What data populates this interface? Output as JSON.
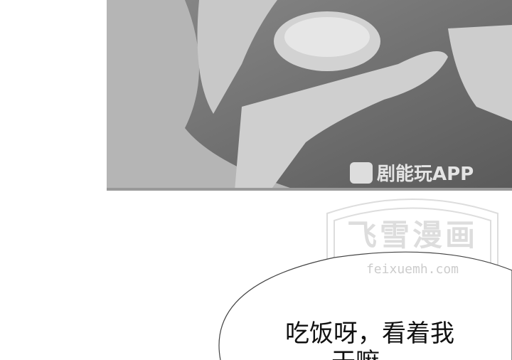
{
  "watermark": {
    "app": "剧能玩APP",
    "site_name": "飞雪漫画",
    "site_url": "feixuemh.com"
  },
  "speech_bubble": {
    "lines": [
      "吃饭呀，看着我",
      "干嘛"
    ]
  }
}
